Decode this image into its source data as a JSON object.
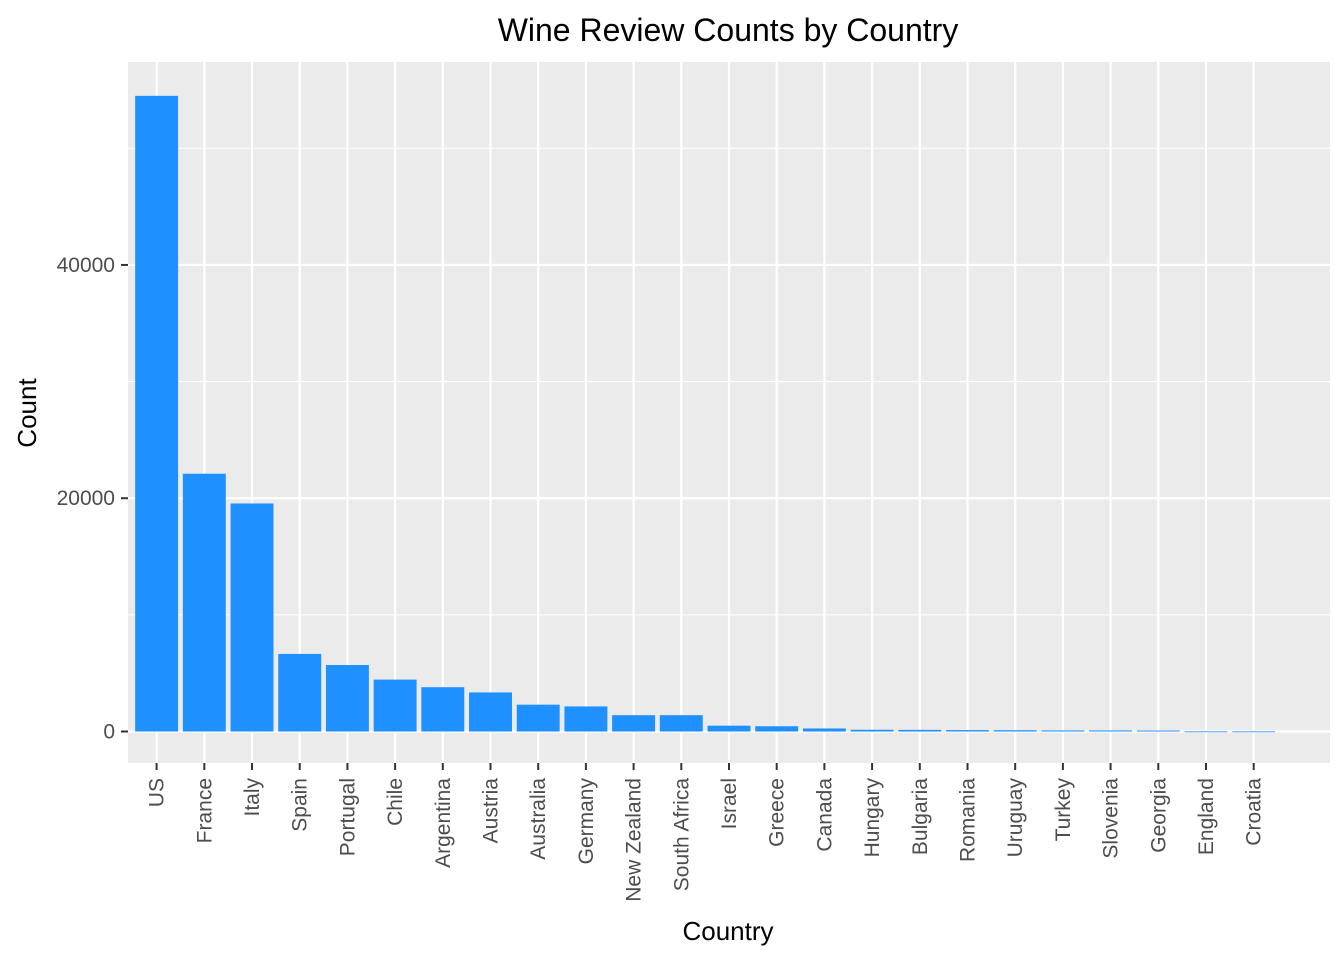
{
  "colors": {
    "bar": "#1E90FF",
    "panel_background": "#EBEBEB",
    "grid": "#FFFFFF",
    "tick": "#333333",
    "text": "#000000",
    "tick_text": "#4D4D4D"
  },
  "chart_data": {
    "type": "bar",
    "title": "Wine Review Counts by Country",
    "xlabel": "Country",
    "ylabel": "Count",
    "ylim": [
      -2700,
      57400
    ],
    "yticks": [
      0,
      20000,
      40000
    ],
    "ytick_labels": [
      "0",
      "20000",
      "40000"
    ],
    "grid": true,
    "categories": [
      "US",
      "France",
      "Italy",
      "Spain",
      "Portugal",
      "Chile",
      "Argentina",
      "Austria",
      "Australia",
      "Germany",
      "New Zealand",
      "South Africa",
      "Israel",
      "Greece",
      "Canada",
      "Hungary",
      "Bulgaria",
      "Romania",
      "Uruguay",
      "Turkey",
      "Slovenia",
      "Georgia",
      "England",
      "Croatia"
    ],
    "values": [
      54500,
      22100,
      19550,
      6650,
      5700,
      4450,
      3800,
      3350,
      2300,
      2150,
      1400,
      1400,
      500,
      450,
      260,
      150,
      140,
      120,
      110,
      90,
      90,
      80,
      10,
      10
    ]
  }
}
